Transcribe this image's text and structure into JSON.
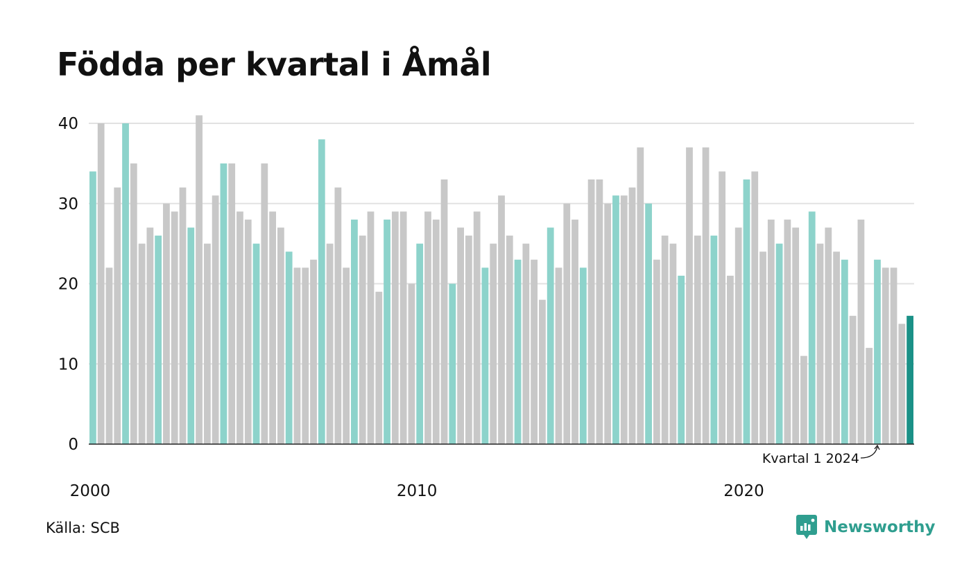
{
  "title": "Födda per kvartal i Åmål",
  "source": "Källa: SCB",
  "brand": {
    "name": "Newsworthy",
    "icon": "newsworthy-logo-icon"
  },
  "colors": {
    "q1": "#8dd3cb",
    "other": "#c8c8c8",
    "latest": "#1a9187",
    "grid": "#e2e2e2",
    "axis": "#222222",
    "brand": "#2f9e8f"
  },
  "chart_data": {
    "type": "bar",
    "title": "Födda per kvartal i Åmål",
    "xlabel": "",
    "ylabel": "",
    "ylim": [
      0,
      40
    ],
    "y_ticks": [
      0,
      10,
      20,
      30,
      40
    ],
    "x_ticks": [
      {
        "label": "2000",
        "year": 2000
      },
      {
        "label": "2010",
        "year": 2010
      },
      {
        "label": "2020",
        "year": 2020
      }
    ],
    "grid": true,
    "start": {
      "year": 2000,
      "quarter": 1
    },
    "highlight": "quarter 1 bars",
    "annotation": {
      "text": "Kvartal 1 2024",
      "year": 2024,
      "quarter": 1
    },
    "values": [
      34,
      40,
      22,
      32,
      40,
      35,
      25,
      27,
      26,
      30,
      29,
      32,
      27,
      41,
      25,
      31,
      35,
      35,
      29,
      28,
      25,
      35,
      29,
      27,
      24,
      22,
      22,
      23,
      38,
      25,
      32,
      22,
      28,
      26,
      29,
      19,
      28,
      29,
      29,
      20,
      25,
      29,
      28,
      33,
      20,
      27,
      26,
      29,
      22,
      25,
      31,
      26,
      23,
      25,
      23,
      18,
      27,
      22,
      30,
      28,
      22,
      33,
      33,
      30,
      31,
      31,
      32,
      37,
      30,
      23,
      26,
      25,
      21,
      37,
      26,
      37,
      26,
      34,
      21,
      27,
      33,
      34,
      24,
      28,
      25,
      28,
      27,
      11,
      29,
      25,
      27,
      24,
      23,
      16,
      28,
      12,
      23,
      22,
      22,
      15,
      16
    ]
  }
}
